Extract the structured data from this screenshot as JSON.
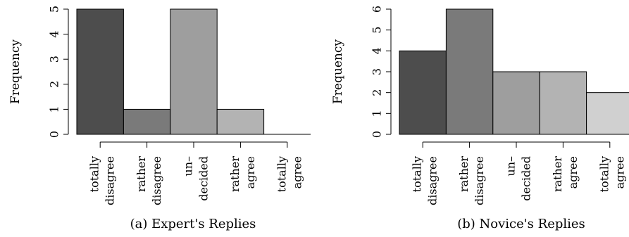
{
  "chart_data": [
    {
      "type": "bar",
      "caption": "(a) Expert's Replies",
      "ylabel": "Frequency",
      "ylim": [
        0,
        5
      ],
      "yticks": [
        0,
        1,
        2,
        3,
        4,
        5
      ],
      "categories": [
        [
          "totally",
          "disagree"
        ],
        [
          "rather",
          "disagree"
        ],
        [
          "un–",
          "decided"
        ],
        [
          "rather",
          "agree"
        ],
        [
          "totally",
          "agree"
        ]
      ],
      "values": [
        5,
        1,
        5,
        1,
        0
      ],
      "colors": [
        "#4d4d4d",
        "#7a7a7a",
        "#9e9e9e",
        "#b3b3b3",
        "#d0d0d0"
      ]
    },
    {
      "type": "bar",
      "caption": "(b) Novice's Replies",
      "ylabel": "Frequency",
      "ylim": [
        0,
        6
      ],
      "yticks": [
        0,
        1,
        2,
        3,
        4,
        5,
        6
      ],
      "categories": [
        [
          "totally",
          "disagree"
        ],
        [
          "rather",
          "disagree"
        ],
        [
          "un–",
          "decided"
        ],
        [
          "rather",
          "agree"
        ],
        [
          "totally",
          "agree"
        ]
      ],
      "values": [
        4,
        6,
        3,
        3,
        2
      ],
      "colors": [
        "#4d4d4d",
        "#7a7a7a",
        "#9e9e9e",
        "#b3b3b3",
        "#d0d0d0"
      ]
    }
  ]
}
